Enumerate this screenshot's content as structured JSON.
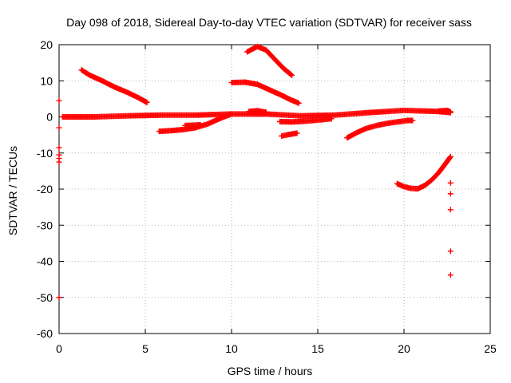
{
  "chart_data": {
    "type": "scatter",
    "title": "Day 098 of 2018, Sidereal Day-to-day VTEC variation (SDTVAR) for receiver sass",
    "xlabel": "GPS time / hours",
    "ylabel": "SDTVAR / TECUs",
    "xlim": [
      0,
      25
    ],
    "ylim": [
      -60,
      20
    ],
    "xticks": [
      0,
      5,
      10,
      15,
      20,
      25
    ],
    "yticks": [
      -60,
      -50,
      -40,
      -30,
      -20,
      -10,
      0,
      10,
      20
    ],
    "grid": true,
    "marker": "plus",
    "color": "#ff0000",
    "segments": [
      {
        "x": [
          0.2,
          2,
          4,
          6,
          8,
          10,
          12,
          14,
          16,
          18,
          20,
          22,
          22.7
        ],
        "y": [
          0,
          0,
          0.3,
          0.5,
          0.5,
          0.8,
          0.8,
          0.3,
          0.5,
          1.2,
          1.8,
          1.5,
          1.2
        ]
      },
      {
        "x": [
          1.3,
          1.8,
          2.5,
          3.2,
          4.0,
          4.6,
          5.1
        ],
        "y": [
          13,
          11.5,
          10,
          8.3,
          6.7,
          5.3,
          4
        ]
      },
      {
        "x": [
          5.8,
          6.5,
          7.2,
          7.9,
          8.6,
          9.3,
          10
        ],
        "y": [
          -4,
          -3.8,
          -3.5,
          -3,
          -2,
          -0.5,
          0.8
        ]
      },
      {
        "x": [
          7.3,
          7.8,
          8.2
        ],
        "y": [
          -2.4,
          -2.3,
          -2.2
        ]
      },
      {
        "x": [
          10.0,
          10.8,
          11.5,
          12.2,
          12.9,
          13.4,
          13.9
        ],
        "y": [
          9.5,
          9.6,
          9,
          7.5,
          6,
          4.8,
          3.8
        ]
      },
      {
        "x": [
          10.9,
          11.5,
          12.0,
          12.5,
          13.0,
          13.5
        ],
        "y": [
          18,
          19.5,
          18.5,
          16,
          13.5,
          11.5
        ]
      },
      {
        "x": [
          11.0,
          11.5,
          12.0
        ],
        "y": [
          1.5,
          1.7,
          1.3
        ]
      },
      {
        "x": [
          12.9,
          13.3,
          13.8
        ],
        "y": [
          -5.3,
          -4.9,
          -4.5
        ]
      },
      {
        "x": [
          12.8,
          13.5,
          14.2,
          15.0,
          15.8
        ],
        "y": [
          -1.3,
          -1.4,
          -1.2,
          -0.9,
          -0.5
        ]
      },
      {
        "x": [
          16.7,
          17.2,
          17.8,
          18.4,
          19.0,
          19.6,
          20.2,
          20.5
        ],
        "y": [
          -5.8,
          -4.5,
          -3.2,
          -2.4,
          -1.8,
          -1.4,
          -1.0,
          -1.0
        ]
      },
      {
        "x": [
          19.6,
          20.0,
          20.4,
          20.8,
          21.2,
          21.6,
          22.0,
          22.4,
          22.7
        ],
        "y": [
          -18.5,
          -19.3,
          -19.8,
          -19.9,
          -19.0,
          -17.5,
          -15.5,
          -13.0,
          -11
        ]
      },
      {
        "x": [
          22.0,
          22.5,
          22.7
        ],
        "y": [
          1.6,
          1.8,
          1.4
        ]
      }
    ],
    "isolated_points": [
      {
        "x": 0,
        "y": 4.5
      },
      {
        "x": 0,
        "y": -3
      },
      {
        "x": 0,
        "y": -8.5
      },
      {
        "x": 0,
        "y": -10.5
      },
      {
        "x": 0,
        "y": -11.5
      },
      {
        "x": 0,
        "y": -12.5
      },
      {
        "x": 0,
        "y": -50
      },
      {
        "x": 22.7,
        "y": -18.3
      },
      {
        "x": 22.7,
        "y": -21.3
      },
      {
        "x": 22.7,
        "y": -25.7
      },
      {
        "x": 22.7,
        "y": -37.2
      },
      {
        "x": 22.7,
        "y": -43.8
      }
    ]
  }
}
